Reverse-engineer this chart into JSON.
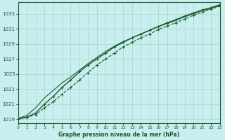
{
  "title": "Graphe pression niveau de la mer (hPa)",
  "bg_color": "#c8eef0",
  "grid_color": "#b0d8cc",
  "line_color": "#1a5c2a",
  "xlim": [
    0,
    23
  ],
  "ylim": [
    1018.5,
    1034.5
  ],
  "yticks": [
    1019,
    1021,
    1023,
    1025,
    1027,
    1029,
    1031,
    1033
  ],
  "xticks": [
    0,
    1,
    2,
    3,
    4,
    5,
    6,
    7,
    8,
    9,
    10,
    11,
    12,
    13,
    14,
    15,
    16,
    17,
    18,
    19,
    20,
    21,
    22,
    23
  ],
  "line1_x": [
    0,
    1,
    2,
    3,
    4,
    5,
    6,
    7,
    8,
    9,
    10,
    11,
    12,
    13,
    14,
    15,
    16,
    17,
    18,
    19,
    20,
    21,
    22,
    23
  ],
  "line1_y": [
    1019.0,
    1019.2,
    1019.6,
    1020.5,
    1021.3,
    1022.3,
    1023.2,
    1024.2,
    1025.2,
    1026.2,
    1027.0,
    1027.8,
    1028.6,
    1029.2,
    1029.8,
    1030.3,
    1030.9,
    1031.4,
    1031.8,
    1032.3,
    1032.8,
    1033.2,
    1033.6,
    1034.0
  ],
  "line2_x": [
    0,
    1,
    2,
    3,
    4,
    5,
    6,
    7,
    8,
    9,
    10,
    11,
    12,
    13,
    14,
    15,
    16,
    17,
    18,
    19,
    20,
    21,
    22,
    23
  ],
  "line2_y": [
    1019.0,
    1019.3,
    1019.8,
    1021.0,
    1022.0,
    1023.2,
    1024.2,
    1025.3,
    1026.2,
    1027.0,
    1027.8,
    1028.6,
    1029.2,
    1029.8,
    1030.3,
    1030.8,
    1031.3,
    1031.8,
    1032.2,
    1032.7,
    1033.1,
    1033.5,
    1033.8,
    1034.2
  ],
  "line3_x": [
    0,
    1,
    2,
    3,
    4,
    5,
    6,
    7,
    8,
    9,
    10,
    11,
    12,
    13,
    14,
    15,
    16,
    17,
    18,
    19,
    20,
    21,
    22,
    23
  ],
  "line3_y": [
    1019.1,
    1019.5,
    1020.5,
    1021.8,
    1022.8,
    1023.8,
    1024.6,
    1025.5,
    1026.4,
    1027.2,
    1028.0,
    1028.7,
    1029.3,
    1029.8,
    1030.3,
    1030.8,
    1031.3,
    1031.7,
    1032.1,
    1032.6,
    1033.0,
    1033.4,
    1033.7,
    1034.1
  ]
}
